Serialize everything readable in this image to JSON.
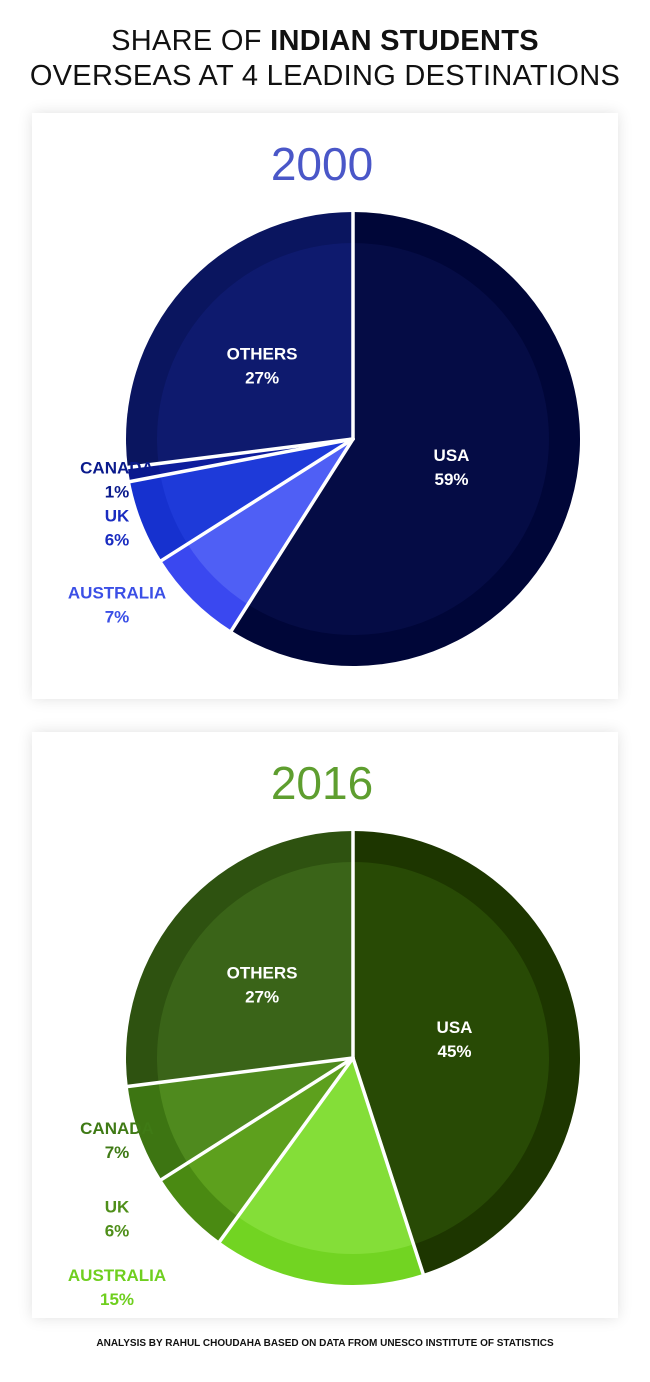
{
  "header": {
    "title_part1": "SHARE OF ",
    "title_bold": "INDIAN STUDENTS",
    "title_line2": "OVERSEAS AT 4 LEADING DESTINATIONS"
  },
  "footer": {
    "source": "ANALYSIS BY RAHUL CHOUDAHA BASED ON DATA FROM UNESCO INSTITUTE OF STATISTICS"
  },
  "chart_data": [
    {
      "type": "pie",
      "title": "2000",
      "title_color": "#4a57c8",
      "labels": [
        "USA",
        "AUSTRALIA",
        "UK",
        "CANADA",
        "OTHERS"
      ],
      "values": [
        59,
        7,
        6,
        1,
        27
      ],
      "value_labels": [
        "59%",
        "7%",
        "6%",
        "1%",
        "27%"
      ],
      "outer_colors": [
        "#000638",
        "#3a48f0",
        "#1631cf",
        "#0a188e",
        "#0a155f"
      ],
      "inner_colors": [
        "#050c45",
        "#4f5ff5",
        "#1e3ad9",
        "#0e1d9c",
        "#0e1a6e"
      ],
      "label_colors": [
        "#ffffff",
        "#3b4fe6",
        "#1a2cc0",
        "#0a1a8c",
        "#ffffff"
      ]
    },
    {
      "type": "pie",
      "title": "2016",
      "title_color": "#5e9e2f",
      "labels": [
        "USA",
        "AUSTRALIA",
        "UK",
        "CANADA",
        "OTHERS"
      ],
      "values": [
        45,
        15,
        6,
        7,
        27
      ],
      "value_labels": [
        "45%",
        "15%",
        "6%",
        "7%",
        "27%"
      ],
      "outer_colors": [
        "#1d3600",
        "#72d422",
        "#4a8a12",
        "#3d7512",
        "#2e5210"
      ],
      "inner_colors": [
        "#284a05",
        "#84de38",
        "#5da01d",
        "#4f8a1e",
        "#3a6418"
      ],
      "label_colors": [
        "#ffffff",
        "#6fcf1f",
        "#4f8f1a",
        "#3f7a15",
        "#ffffff"
      ]
    }
  ]
}
